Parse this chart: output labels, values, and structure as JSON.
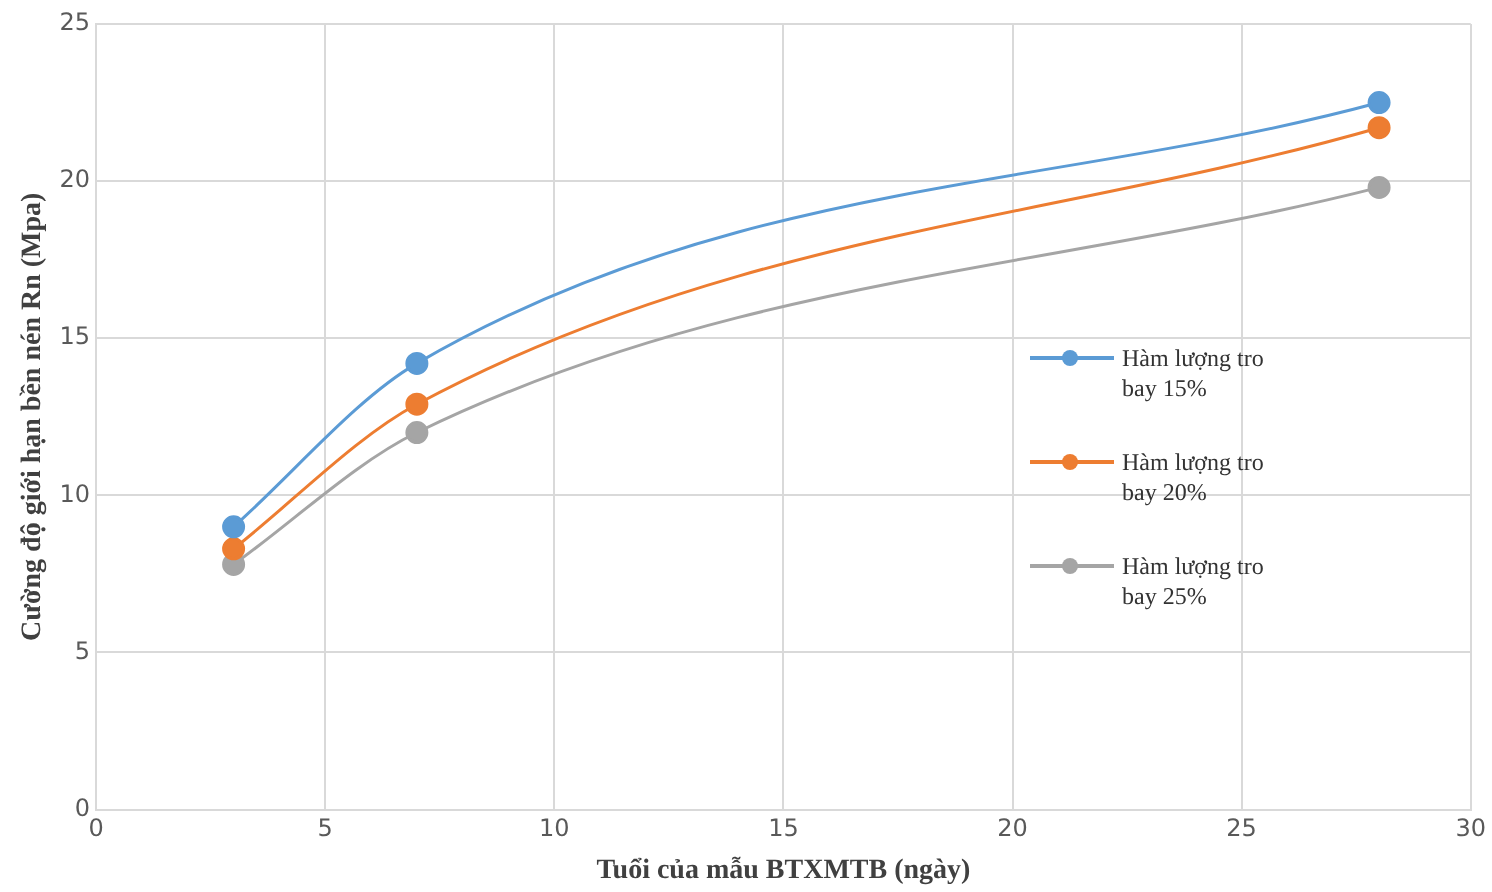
{
  "chart_data": {
    "type": "line",
    "xlabel": "Tuổi của mẫu BTXMTB (ngày)",
    "ylabel": "Cường độ giới hạn bền nén Rn (Mpa)",
    "x": [
      3,
      7,
      28
    ],
    "series": [
      {
        "name": "Hàm lượng tro bay 15%",
        "color": "#5b9bd5",
        "values": [
          9.0,
          14.2,
          22.5
        ]
      },
      {
        "name": "Hàm lượng tro bay 20%",
        "color": "#ed7d31",
        "values": [
          8.3,
          12.9,
          21.7
        ]
      },
      {
        "name": "Hàm lượng tro bay 25%",
        "color": "#a5a5a5",
        "values": [
          7.8,
          12.0,
          19.8
        ]
      }
    ],
    "xlim": [
      0,
      30
    ],
    "xticks": [
      0,
      5,
      10,
      15,
      20,
      25,
      30
    ],
    "ylim": [
      0,
      25
    ],
    "yticks": [
      0,
      5,
      10,
      15,
      20,
      25
    ],
    "grid": true,
    "legend": "right",
    "marker": "circle",
    "line_style": "solid"
  }
}
